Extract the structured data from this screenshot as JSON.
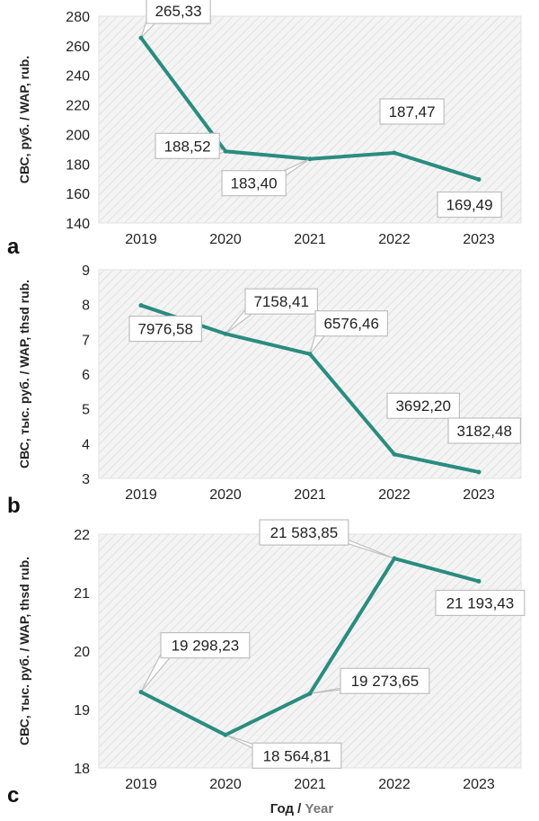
{
  "colors": {
    "line": "#2a8c80",
    "plot_bg": "#f4f4f4",
    "hatch": "#d6d6d6",
    "callout_border": "#bfbfbf",
    "ylabel_gray": "#222222",
    "year_gray": "#777777"
  },
  "x_title": {
    "ru": "Год",
    "sep": " / ",
    "en": "Year"
  },
  "chart_data": [
    {
      "type": "line",
      "panel": "a",
      "categories": [
        "2019",
        "2020",
        "2021",
        "2022",
        "2023"
      ],
      "values": [
        265.33,
        188.52,
        183.4,
        187.47,
        169.49
      ],
      "value_labels": [
        "265,33",
        "188,52",
        "183,40",
        "187,47",
        "169,49"
      ],
      "ylabel": {
        "ru": "СВС, руб.",
        "en": "WAP, rub."
      },
      "ylim": [
        140,
        280
      ],
      "yticks": [
        140,
        160,
        180,
        200,
        220,
        240,
        260,
        280
      ],
      "grid": false
    },
    {
      "type": "line",
      "panel": "b",
      "categories": [
        "2019",
        "2020",
        "2021",
        "2022",
        "2023"
      ],
      "values": [
        7.97658,
        7.15841,
        6.57646,
        3.6922,
        3.18248
      ],
      "value_labels": [
        "7976,58",
        "7158,41",
        "6576,46",
        "3692,20",
        "3182,48"
      ],
      "ylabel": {
        "ru": "СВС, тыс. руб.",
        "en": "WAP, thsd rub."
      },
      "ylim": [
        3,
        9
      ],
      "yticks": [
        3,
        4,
        5,
        6,
        7,
        8,
        9
      ],
      "grid": false
    },
    {
      "type": "line",
      "panel": "c",
      "categories": [
        "2019",
        "2020",
        "2021",
        "2022",
        "2023"
      ],
      "values": [
        19.29823,
        18.56481,
        19.27365,
        21.58385,
        21.19343
      ],
      "value_labels": [
        "19 298,23",
        "18 564,81",
        "19 273,65",
        "21 583,85",
        "21 193,43"
      ],
      "ylabel": {
        "ru": "СВС, тыс. руб.",
        "en": "WAP, thsd rub."
      },
      "ylim": [
        18,
        22
      ],
      "yticks": [
        18,
        19,
        20,
        21,
        22
      ],
      "grid": false
    }
  ]
}
